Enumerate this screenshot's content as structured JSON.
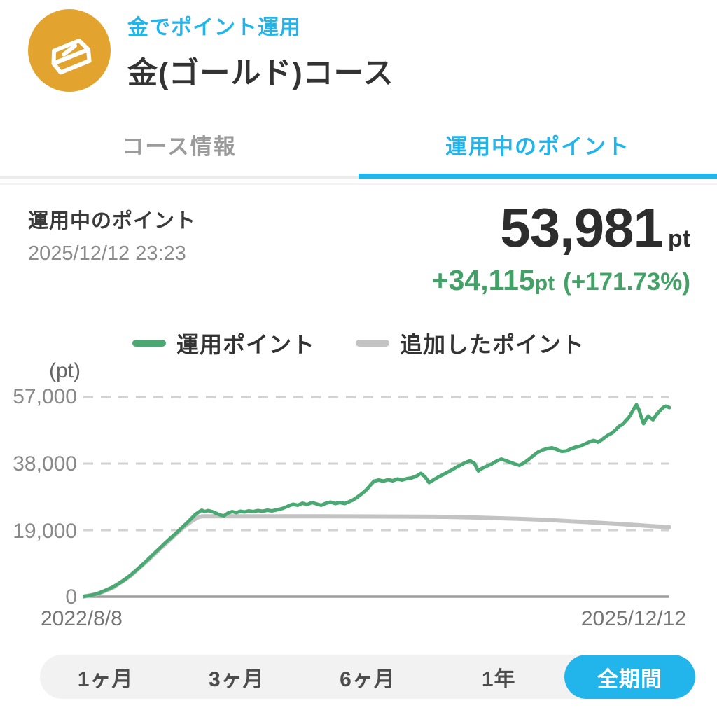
{
  "colors": {
    "accent": "#22b5ec",
    "gold": "#e2a42e",
    "green_line": "#4aa873",
    "green_text": "#43a167",
    "added_line": "#c3c3c3"
  },
  "header": {
    "app_label": "金でポイント運用",
    "course_title": "金(ゴールド)コース",
    "icon": "gold-ingot-icon"
  },
  "tabs": [
    {
      "label": "コース情報",
      "active": false
    },
    {
      "label": "運用中のポイント",
      "active": true
    }
  ],
  "summary": {
    "label": "運用中のポイント",
    "timestamp": "2025/12/12 23:23",
    "points_value": "53,981",
    "points_unit": "pt",
    "gain_value": "+34,115",
    "gain_unit": "pt",
    "gain_percent": "(+171.73%)"
  },
  "legend": [
    {
      "label": "運用ポイント",
      "color": "#4aa873"
    },
    {
      "label": "追加したポイント",
      "color": "#c3c3c3"
    }
  ],
  "chart_data": {
    "type": "line",
    "unit_label": "(pt)",
    "y_ticks": [
      "57,000",
      "38,000",
      "19,000",
      "0"
    ],
    "y_tick_values": [
      57000,
      38000,
      19000,
      0
    ],
    "ylim": [
      0,
      59000
    ],
    "x_start_label": "2022/8/8",
    "x_end_label": "2025/12/12",
    "grid": "dashed-horizontal",
    "legend_position": "top-center",
    "series": [
      {
        "name": "運用ポイント",
        "color": "#4aa873",
        "points": [
          [
            0.0,
            100
          ],
          [
            0.008,
            260
          ],
          [
            0.016,
            520
          ],
          [
            0.024,
            880
          ],
          [
            0.032,
            1400
          ],
          [
            0.04,
            2000
          ],
          [
            0.05,
            2750
          ],
          [
            0.06,
            3700
          ],
          [
            0.07,
            4800
          ],
          [
            0.08,
            6100
          ],
          [
            0.09,
            7500
          ],
          [
            0.1,
            9000
          ],
          [
            0.11,
            10600
          ],
          [
            0.12,
            12200
          ],
          [
            0.13,
            13800
          ],
          [
            0.14,
            15400
          ],
          [
            0.15,
            16900
          ],
          [
            0.16,
            18400
          ],
          [
            0.17,
            20000
          ],
          [
            0.18,
            21600
          ],
          [
            0.19,
            23300
          ],
          [
            0.197,
            24200
          ],
          [
            0.202,
            24700
          ],
          [
            0.207,
            24300
          ],
          [
            0.213,
            24600
          ],
          [
            0.22,
            24300
          ],
          [
            0.227,
            23800
          ],
          [
            0.234,
            23300
          ],
          [
            0.24,
            23100
          ],
          [
            0.247,
            23900
          ],
          [
            0.254,
            24300
          ],
          [
            0.261,
            24000
          ],
          [
            0.268,
            24400
          ],
          [
            0.275,
            24200
          ],
          [
            0.282,
            24500
          ],
          [
            0.29,
            24300
          ],
          [
            0.298,
            24600
          ],
          [
            0.306,
            24400
          ],
          [
            0.314,
            24700
          ],
          [
            0.322,
            24500
          ],
          [
            0.33,
            24800
          ],
          [
            0.34,
            25200
          ],
          [
            0.35,
            25900
          ],
          [
            0.358,
            26400
          ],
          [
            0.366,
            26100
          ],
          [
            0.374,
            26700
          ],
          [
            0.382,
            26300
          ],
          [
            0.39,
            26900
          ],
          [
            0.398,
            26500
          ],
          [
            0.406,
            26100
          ],
          [
            0.414,
            26700
          ],
          [
            0.422,
            27000
          ],
          [
            0.43,
            26600
          ],
          [
            0.438,
            26900
          ],
          [
            0.446,
            26600
          ],
          [
            0.452,
            27000
          ],
          [
            0.46,
            27600
          ],
          [
            0.468,
            28500
          ],
          [
            0.476,
            29500
          ],
          [
            0.484,
            30700
          ],
          [
            0.49,
            31900
          ],
          [
            0.496,
            33000
          ],
          [
            0.504,
            33300
          ],
          [
            0.512,
            33000
          ],
          [
            0.52,
            33400
          ],
          [
            0.528,
            33100
          ],
          [
            0.536,
            33600
          ],
          [
            0.544,
            33300
          ],
          [
            0.552,
            33700
          ],
          [
            0.56,
            33900
          ],
          [
            0.568,
            34400
          ],
          [
            0.576,
            35200
          ],
          [
            0.583,
            34200
          ],
          [
            0.59,
            32600
          ],
          [
            0.597,
            33300
          ],
          [
            0.604,
            34000
          ],
          [
            0.612,
            34700
          ],
          [
            0.62,
            35400
          ],
          [
            0.628,
            36100
          ],
          [
            0.636,
            36900
          ],
          [
            0.644,
            37600
          ],
          [
            0.652,
            38300
          ],
          [
            0.66,
            38800
          ],
          [
            0.667,
            38100
          ],
          [
            0.674,
            35900
          ],
          [
            0.681,
            36700
          ],
          [
            0.689,
            37300
          ],
          [
            0.697,
            37900
          ],
          [
            0.705,
            38700
          ],
          [
            0.713,
            39300
          ],
          [
            0.72,
            38900
          ],
          [
            0.728,
            38400
          ],
          [
            0.736,
            37900
          ],
          [
            0.744,
            37500
          ],
          [
            0.752,
            38200
          ],
          [
            0.76,
            39200
          ],
          [
            0.768,
            40300
          ],
          [
            0.776,
            41300
          ],
          [
            0.784,
            41900
          ],
          [
            0.792,
            42300
          ],
          [
            0.8,
            42500
          ],
          [
            0.808,
            42000
          ],
          [
            0.816,
            41500
          ],
          [
            0.824,
            41600
          ],
          [
            0.832,
            42200
          ],
          [
            0.84,
            42700
          ],
          [
            0.848,
            43000
          ],
          [
            0.856,
            43600
          ],
          [
            0.864,
            44200
          ],
          [
            0.871,
            44600
          ],
          [
            0.878,
            44100
          ],
          [
            0.884,
            44700
          ],
          [
            0.89,
            45500
          ],
          [
            0.896,
            46200
          ],
          [
            0.902,
            46700
          ],
          [
            0.908,
            47600
          ],
          [
            0.914,
            48600
          ],
          [
            0.92,
            49200
          ],
          [
            0.926,
            50300
          ],
          [
            0.931,
            51200
          ],
          [
            0.936,
            52600
          ],
          [
            0.941,
            54100
          ],
          [
            0.944,
            54800
          ],
          [
            0.948,
            53400
          ],
          [
            0.952,
            51300
          ],
          [
            0.956,
            49400
          ],
          [
            0.96,
            50600
          ],
          [
            0.964,
            51600
          ],
          [
            0.968,
            51000
          ],
          [
            0.972,
            50500
          ],
          [
            0.976,
            51500
          ],
          [
            0.98,
            52400
          ],
          [
            0.984,
            53100
          ],
          [
            0.988,
            53800
          ],
          [
            0.991,
            54200
          ],
          [
            0.994,
            54400
          ],
          [
            1.0,
            53981
          ]
        ]
      },
      {
        "name": "追加したポイント",
        "color": "#c3c3c3",
        "points": [
          [
            0.0,
            0
          ],
          [
            0.025,
            850
          ],
          [
            0.05,
            2550
          ],
          [
            0.08,
            5900
          ],
          [
            0.11,
            10400
          ],
          [
            0.14,
            15100
          ],
          [
            0.17,
            19700
          ],
          [
            0.185,
            21600
          ],
          [
            0.196,
            22700
          ],
          [
            0.202,
            22950
          ],
          [
            0.3,
            22950
          ],
          [
            0.4,
            22930
          ],
          [
            0.5,
            22900
          ],
          [
            0.58,
            22870
          ],
          [
            0.62,
            22800
          ],
          [
            0.66,
            22650
          ],
          [
            0.7,
            22450
          ],
          [
            0.74,
            22250
          ],
          [
            0.78,
            22000
          ],
          [
            0.82,
            21650
          ],
          [
            0.86,
            21300
          ],
          [
            0.9,
            20900
          ],
          [
            0.94,
            20500
          ],
          [
            0.97,
            20150
          ],
          [
            1.0,
            19870
          ]
        ]
      }
    ]
  },
  "period_buttons": {
    "active_color": "#22b5ec",
    "items": [
      {
        "label": "1ヶ月",
        "active": false
      },
      {
        "label": "3ヶ月",
        "active": false
      },
      {
        "label": "6ヶ月",
        "active": false
      },
      {
        "label": "1年",
        "active": false
      },
      {
        "label": "全期間",
        "active": true
      }
    ]
  }
}
